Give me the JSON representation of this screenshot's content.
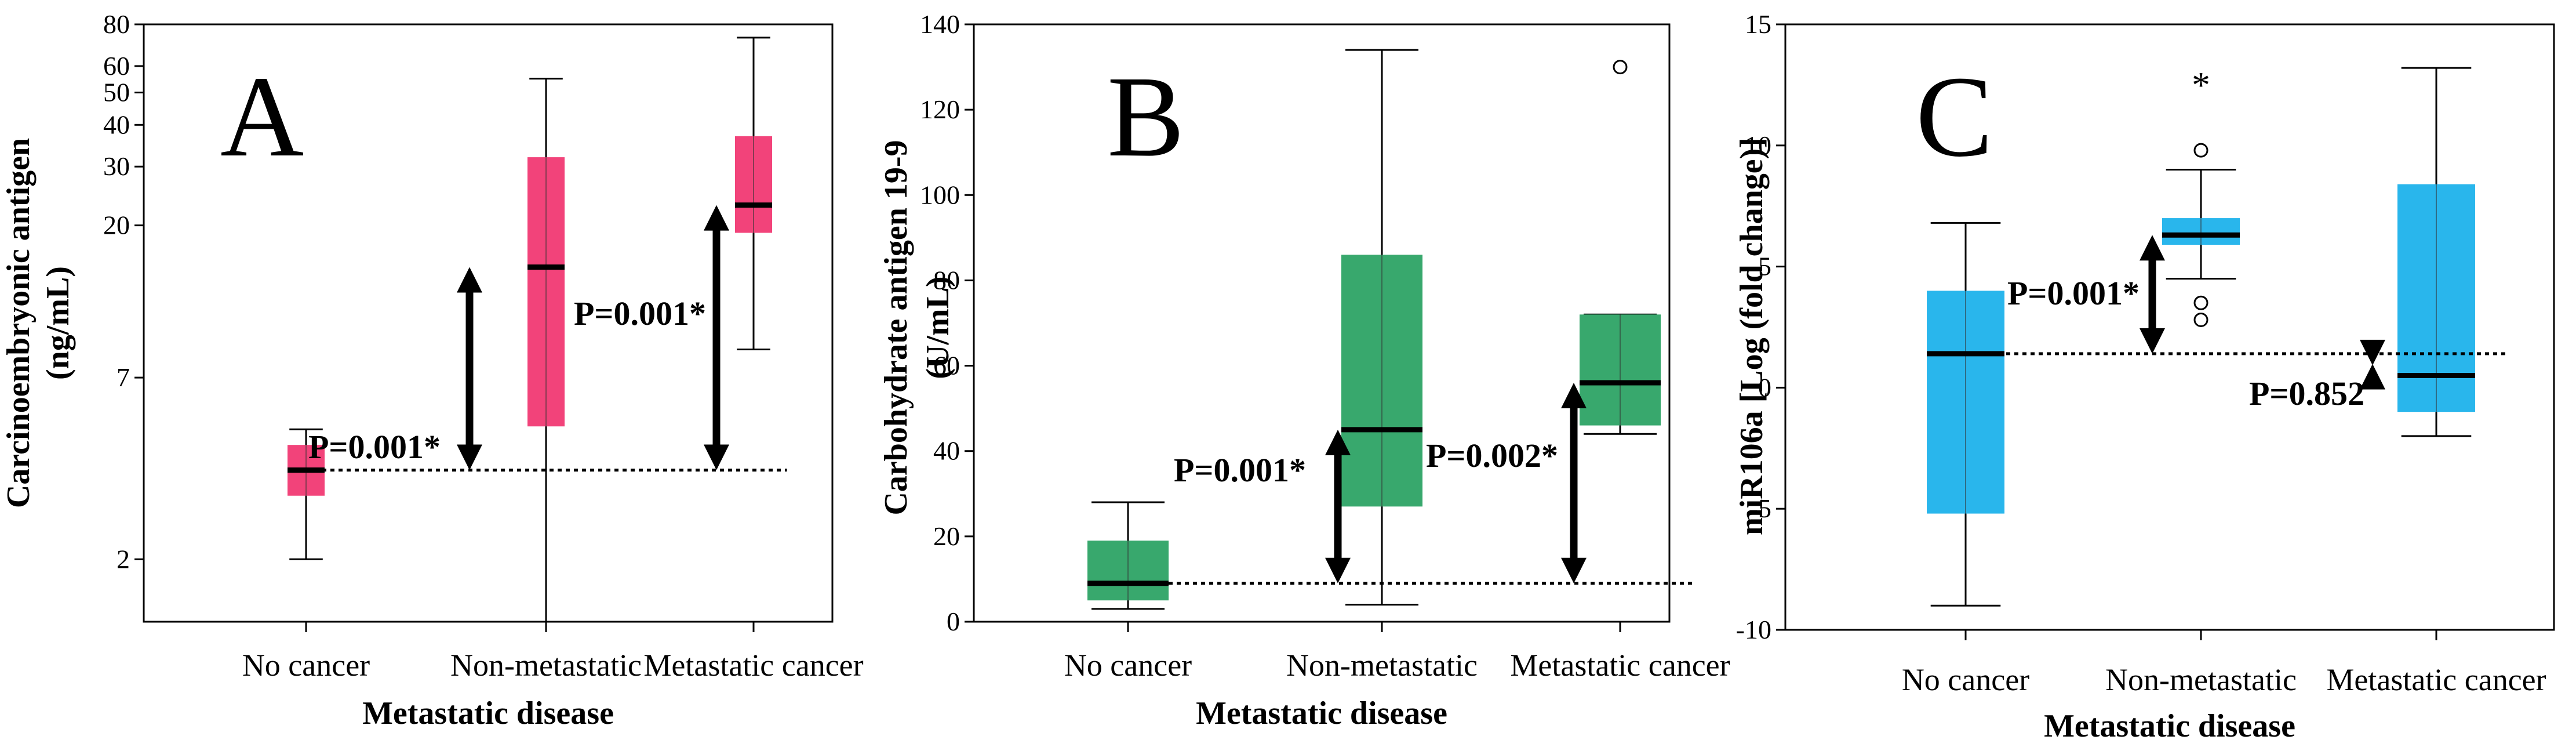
{
  "chart_data": [
    {
      "type": "box",
      "panel_letter": "A",
      "title": "",
      "xlabel": "Metastatic disease",
      "ylabel": [
        "Carcinoembryonic antigen",
        "(ng/mL)"
      ],
      "y_scale": "log",
      "ylim": [
        1.3,
        80
      ],
      "yticks": [
        2,
        7,
        20,
        30,
        40,
        50,
        60,
        80
      ],
      "categories": [
        "No cancer",
        "Non-metastatic",
        "Metastatic cancer"
      ],
      "color": "#F2437A",
      "boxes": [
        {
          "category": "No cancer",
          "whisker_low": 2.0,
          "q1": 3.1,
          "median": 3.7,
          "q3": 4.4,
          "whisker_high": 4.9
        },
        {
          "category": "Non-metastatic",
          "whisker_low": 1.3,
          "q1": 5.0,
          "median": 15.0,
          "q3": 32.0,
          "whisker_high": 55.0
        },
        {
          "category": "Metastatic cancer",
          "whisker_low": 8.5,
          "q1": 19.0,
          "median": 23.0,
          "q3": 37.0,
          "whisker_high": 73.0
        }
      ],
      "reference_value": 3.7,
      "annotations": [
        {
          "text": "P=0.001*",
          "category": "Non-metastatic",
          "from": 3.7,
          "to": 15.0
        },
        {
          "text": "P=0.001*",
          "category": "Metastatic cancer",
          "from": 3.7,
          "to": 23.0
        }
      ],
      "outliers": []
    },
    {
      "type": "box",
      "panel_letter": "B",
      "title": "",
      "xlabel": "Metastatic disease",
      "ylabel": [
        "Carbohydrate antigen 19-9",
        "(U/mL)"
      ],
      "y_scale": "linear",
      "ylim": [
        0,
        140
      ],
      "yticks": [
        0,
        20,
        40,
        60,
        80,
        100,
        120,
        140
      ],
      "categories": [
        "No cancer",
        "Non-metastatic",
        "Metastatic cancer"
      ],
      "color": "#38A86D",
      "boxes": [
        {
          "category": "No cancer",
          "whisker_low": 3,
          "q1": 5,
          "median": 9,
          "q3": 19,
          "whisker_high": 28
        },
        {
          "category": "Non-metastatic",
          "whisker_low": 4,
          "q1": 27,
          "median": 45,
          "q3": 86,
          "whisker_high": 134
        },
        {
          "category": "Metastatic cancer",
          "whisker_low": 44,
          "q1": 46,
          "median": 56,
          "q3": 72,
          "whisker_high": 72
        }
      ],
      "reference_value": 9,
      "annotations": [
        {
          "text": "P=0.001*",
          "category": "Non-metastatic",
          "from": 9,
          "to": 45
        },
        {
          "text": "P=0.002*",
          "category": "Metastatic cancer",
          "from": 9,
          "to": 56
        }
      ],
      "outliers": [
        {
          "category": "Metastatic cancer",
          "value": 130,
          "marker": "circle"
        }
      ]
    },
    {
      "type": "box",
      "panel_letter": "C",
      "title": "",
      "xlabel": "Metastatic disease",
      "ylabel": [
        "miR106a [Log (fold change)]"
      ],
      "y_scale": "linear",
      "ylim": [
        -10,
        15
      ],
      "yticks": [
        -10,
        -5,
        0,
        5,
        10,
        15
      ],
      "categories": [
        "No cancer",
        "Non-metastatic",
        "Metastatic cancer"
      ],
      "color": "#29B6EC",
      "boxes": [
        {
          "category": "No cancer",
          "whisker_low": -9.0,
          "q1": -5.2,
          "median": 1.4,
          "q3": 4.0,
          "whisker_high": 6.8
        },
        {
          "category": "Non-metastatic",
          "whisker_low": 4.5,
          "q1": 5.9,
          "median": 6.3,
          "q3": 7.0,
          "whisker_high": 9.0
        },
        {
          "category": "Metastatic cancer",
          "whisker_low": -2.0,
          "q1": -1.0,
          "median": 0.5,
          "q3": 8.4,
          "whisker_high": 13.2
        }
      ],
      "reference_value": 1.4,
      "annotations": [
        {
          "text": "P=0.001*",
          "category": "Non-metastatic",
          "from": 1.4,
          "to": 6.3
        },
        {
          "text": "P=0.852",
          "category": "Metastatic cancer",
          "from": 1.4,
          "to": 0.5
        }
      ],
      "outliers": [
        {
          "category": "Non-metastatic",
          "value": 12.7,
          "marker": "star"
        },
        {
          "category": "Non-metastatic",
          "value": 9.8,
          "marker": "circle"
        },
        {
          "category": "Non-metastatic",
          "value": 3.5,
          "marker": "circle"
        },
        {
          "category": "Non-metastatic",
          "value": 2.8,
          "marker": "circle"
        }
      ]
    }
  ]
}
